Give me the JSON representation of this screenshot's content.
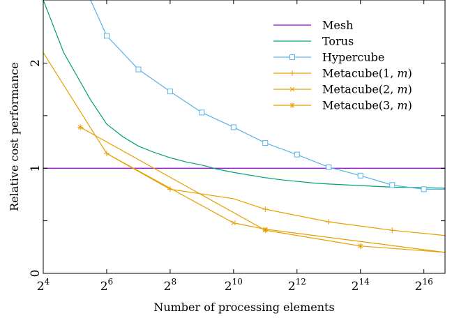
{
  "chart_data": {
    "type": "line",
    "xlabel": "Number of processing elements",
    "ylabel": "Relative cost performance",
    "x_scale": "log2",
    "xlim": [
      16,
      104032
    ],
    "ylim": [
      0,
      2.6
    ],
    "grid": false,
    "legend_position": "top-right",
    "x_ticks": [
      {
        "value": 16,
        "base": "2",
        "exp": "4"
      },
      {
        "value": 64,
        "base": "2",
        "exp": "6"
      },
      {
        "value": 256,
        "base": "2",
        "exp": "8"
      },
      {
        "value": 1024,
        "base": "2",
        "exp": "10"
      },
      {
        "value": 4096,
        "base": "2",
        "exp": "12"
      },
      {
        "value": 16384,
        "base": "2",
        "exp": "14"
      },
      {
        "value": 65536,
        "base": "2",
        "exp": "16"
      }
    ],
    "y_ticks": [
      {
        "value": 0,
        "label": "0"
      },
      {
        "value": 0.5,
        "label": ""
      },
      {
        "value": 1,
        "label": "1"
      },
      {
        "value": 1.5,
        "label": ""
      },
      {
        "value": 2,
        "label": "2"
      }
    ],
    "series": [
      {
        "name": "Mesh",
        "color": "#9400d3",
        "marker": "none",
        "x": [
          16,
          104032
        ],
        "y": [
          1.0,
          1.0
        ]
      },
      {
        "name": "Torus",
        "color": "#009e73",
        "marker": "none",
        "x": [
          16,
          25,
          45,
          64,
          91,
          128,
          181,
          256,
          362,
          512,
          724,
          1024,
          1448,
          2048,
          2896,
          4096,
          5793,
          8192,
          16384,
          32768,
          65536,
          104032
        ],
        "y": [
          2.6,
          2.1,
          1.65,
          1.42,
          1.3,
          1.21,
          1.15,
          1.1,
          1.06,
          1.03,
          0.99,
          0.96,
          0.935,
          0.91,
          0.89,
          0.875,
          0.86,
          0.85,
          0.835,
          0.82,
          0.815,
          0.81
        ]
      },
      {
        "name": "Hypercube",
        "color": "#56b4e9",
        "marker": "square",
        "x": [
          45,
          64,
          128,
          256,
          512,
          1024,
          2048,
          4096,
          8192,
          16384,
          32768,
          65536,
          104032
        ],
        "y": [
          2.6,
          2.26,
          1.94,
          1.73,
          1.53,
          1.39,
          1.24,
          1.13,
          1.01,
          0.93,
          0.84,
          0.8,
          0.8
        ],
        "marker_from": 1,
        "marker_until": 11
      },
      {
        "name": "Metacube(1, m)",
        "color": "#e69f00",
        "marker": "plus",
        "x": [
          16,
          64,
          256,
          1024,
          2048,
          8192,
          32768,
          104032
        ],
        "y": [
          2.1,
          1.14,
          0.8,
          0.71,
          0.61,
          0.49,
          0.41,
          0.36
        ],
        "marker_from": 1,
        "marker_until": 6,
        "marker_skip": [
          3
        ]
      },
      {
        "name": "Metacube(2, m)",
        "color": "#e69f00",
        "marker": "x",
        "x": [
          64,
          1024,
          2048,
          104032
        ],
        "y": [
          1.14,
          0.48,
          0.42,
          0.2
        ],
        "marker_from": 1,
        "marker_until": 2
      },
      {
        "name": "Metacube(3, m)",
        "color": "#e69f00",
        "marker": "asterisk",
        "x": [
          36,
          2048,
          16384,
          104032
        ],
        "y": [
          1.39,
          0.41,
          0.26,
          0.2
        ],
        "marker_from": 0,
        "marker_until": 2
      }
    ],
    "legend": [
      {
        "label": "Mesh",
        "math": "",
        "suffix": ""
      },
      {
        "label": "Torus",
        "math": "",
        "suffix": ""
      },
      {
        "label": "Hypercube",
        "math": "",
        "suffix": ""
      },
      {
        "label": "Metacube(1, ",
        "math": "m",
        "suffix": ")"
      },
      {
        "label": "Metacube(2, ",
        "math": "m",
        "suffix": ")"
      },
      {
        "label": "Metacube(3, ",
        "math": "m",
        "suffix": ")"
      }
    ]
  }
}
